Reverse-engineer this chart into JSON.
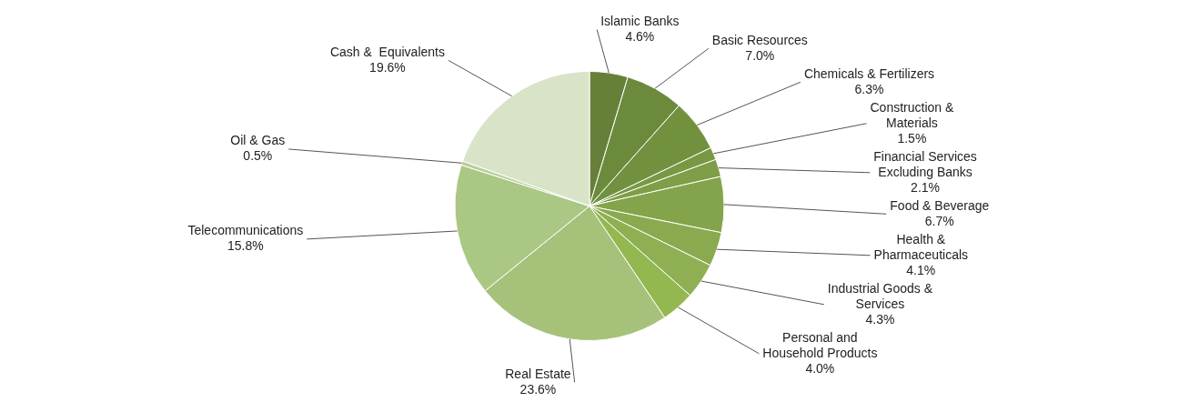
{
  "chart_data": {
    "type": "pie",
    "categories": [
      "Islamic Banks",
      "Basic Resources",
      "Chemicals & Fertilizers",
      "Construction & Materials",
      "Financial Services Excluding Banks",
      "Food & Beverage",
      "Health & Pharmaceuticals",
      "Industrial Goods & Services",
      "Personal and Household Products",
      "Real Estate",
      "Telecommunications",
      "Oil & Gas",
      "Cash &  Equivalents"
    ],
    "values": [
      4.6,
      7.0,
      6.3,
      1.5,
      2.1,
      6.7,
      4.1,
      4.3,
      4.0,
      23.6,
      15.8,
      0.5,
      19.6
    ],
    "value_labels": [
      "4.6%",
      "7.0%",
      "6.3%",
      "1.5%",
      "2.1%",
      "6.7%",
      "4.1%",
      "4.3%",
      "4.0%",
      "23.6%",
      "15.8%",
      "0.5%",
      "19.6%"
    ],
    "colors": [
      "#66803a",
      "#6c8a3c",
      "#72913f",
      "#789843",
      "#7e9e47",
      "#84a44b",
      "#8aaa4f",
      "#8fb052",
      "#93b84f",
      "#a6c27a",
      "#abc784",
      "#b8cf98",
      "#d9e3c8"
    ],
    "legend": false
  }
}
